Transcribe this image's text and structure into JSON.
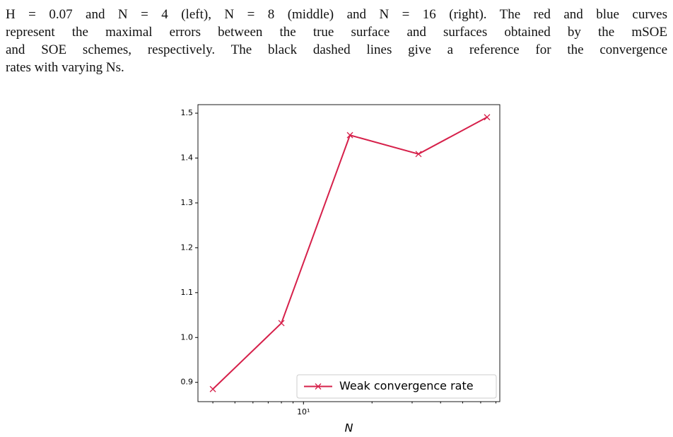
{
  "caption": {
    "lines": [
      "H = 0.07 and N = 4 (left), N = 8 (middle) and N = 16 (right). The red and blue curves",
      "represent the maximal errors between the true surface and surfaces obtained by the mSOE",
      "and SOE schemes, respectively. The black dashed lines give a reference for the convergence",
      "rates with varying Ns."
    ]
  },
  "chart_data": {
    "type": "line",
    "xlabel": "N",
    "log_x": true,
    "x": [
      4,
      8,
      16,
      32,
      64
    ],
    "series": [
      {
        "name": "Weak convergence rate",
        "color": "#d6204a",
        "marker": "x",
        "values": [
          0.885,
          1.032,
          1.451,
          1.409,
          1.491
        ]
      }
    ],
    "xlim": [
      3.44,
      72.8
    ],
    "xticks": [
      {
        "value": 10,
        "label": "10¹"
      }
    ],
    "xminorticks": [
      4,
      5,
      6,
      7,
      8,
      9,
      20,
      30,
      40,
      50,
      60,
      70
    ],
    "ylim": [
      0.857,
      1.519
    ],
    "yticks": [
      0.9,
      {
        "value": 1,
        "label": "1.0"
      },
      1.1,
      1.2,
      1.3,
      1.4,
      1.5
    ],
    "legend": "lower right"
  }
}
